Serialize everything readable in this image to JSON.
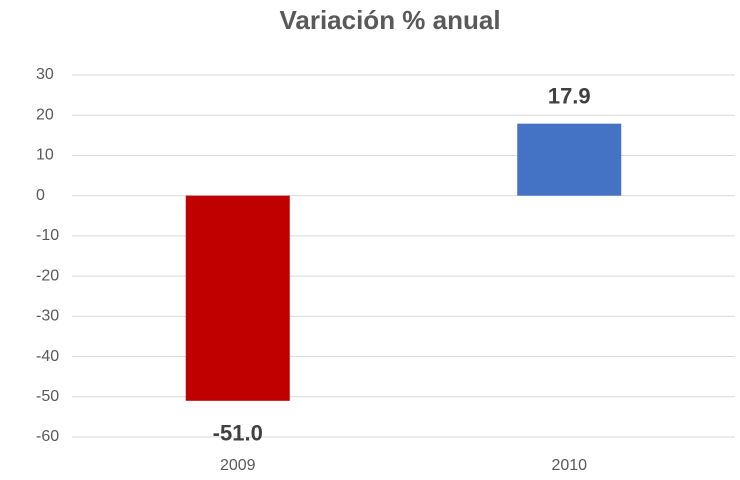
{
  "chart_data": {
    "type": "bar",
    "title": "Variación % anual",
    "categories": [
      "2009",
      "2010"
    ],
    "values": [
      -51.0,
      17.9
    ],
    "value_labels": [
      "-51.0",
      "17.9"
    ],
    "colors": [
      "#c00000",
      "#4472c4"
    ],
    "ylim": [
      -60,
      30
    ],
    "yticks": [
      -60,
      -50,
      -40,
      -30,
      -20,
      -10,
      0,
      10,
      20,
      30
    ],
    "grid": true
  }
}
